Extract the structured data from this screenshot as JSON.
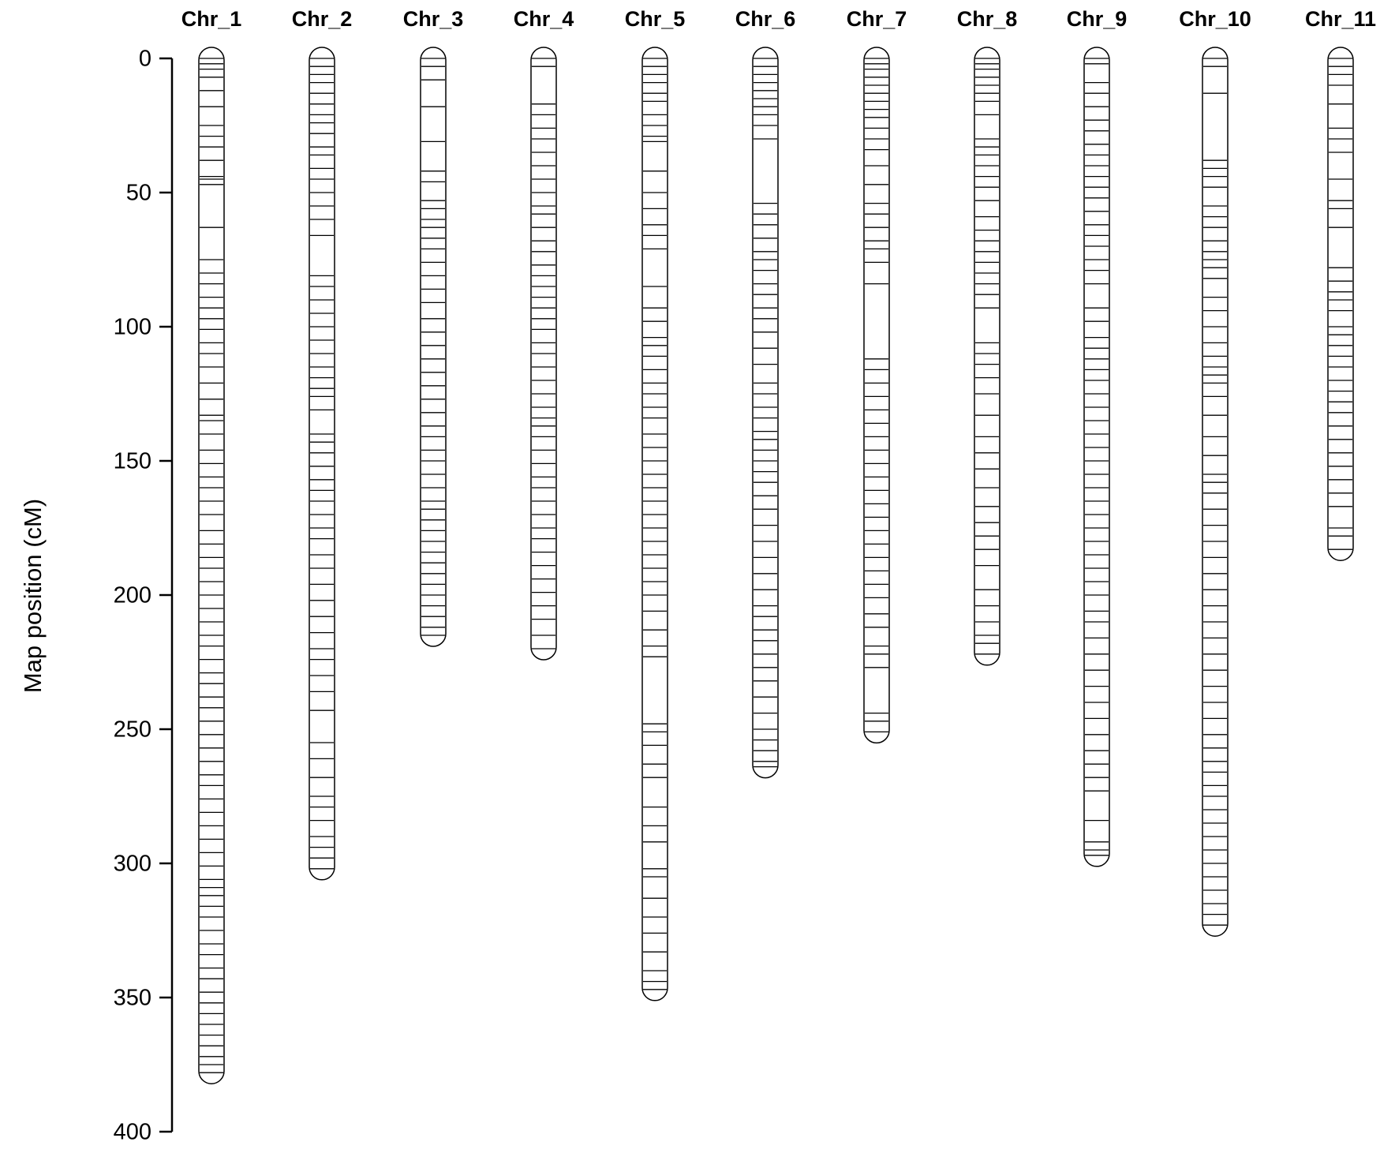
{
  "chart_data": {
    "type": "linkage-map",
    "ylabel": "Map position (cM)",
    "ylim": [
      0,
      400
    ],
    "yticks": [
      0,
      50,
      100,
      150,
      200,
      250,
      300,
      350,
      400
    ],
    "inverted": true,
    "color": "#000000",
    "series": [
      {
        "name": "Chr_1",
        "markers": [
          0,
          2,
          4,
          7,
          12,
          18,
          25,
          29,
          33,
          38,
          44,
          45,
          47,
          63,
          75,
          80,
          84,
          89,
          93,
          97,
          101,
          106,
          110,
          115,
          121,
          127,
          133,
          135,
          140,
          146,
          151,
          156,
          160,
          165,
          170,
          176,
          181,
          186,
          190,
          195,
          200,
          205,
          210,
          215,
          219,
          224,
          229,
          233,
          238,
          242,
          247,
          252,
          257,
          262,
          267,
          271,
          276,
          281,
          286,
          291,
          296,
          301,
          306,
          309,
          312,
          316,
          320,
          325,
          330,
          334,
          339,
          343,
          348,
          352,
          356,
          360,
          364,
          368,
          372,
          375,
          378
        ]
      },
      {
        "name": "Chr_2",
        "markers": [
          0,
          3,
          6,
          9,
          13,
          17,
          21,
          24,
          28,
          33,
          36,
          41,
          45,
          50,
          55,
          60,
          66,
          81,
          85,
          90,
          95,
          100,
          105,
          110,
          115,
          119,
          123,
          126,
          131,
          140,
          143,
          147,
          152,
          157,
          161,
          165,
          170,
          175,
          179,
          185,
          190,
          196,
          202,
          208,
          214,
          220,
          224,
          230,
          236,
          243,
          255,
          261,
          268,
          275,
          279,
          284,
          290,
          294,
          298,
          302
        ]
      },
      {
        "name": "Chr_3",
        "markers": [
          0,
          3,
          8,
          18,
          31,
          42,
          46,
          53,
          56,
          60,
          63,
          67,
          71,
          76,
          81,
          86,
          91,
          97,
          102,
          107,
          112,
          117,
          122,
          127,
          132,
          137,
          141,
          146,
          150,
          155,
          160,
          165,
          168,
          172,
          176,
          180,
          184,
          188,
          192,
          196,
          200,
          204,
          208,
          212,
          215
        ]
      },
      {
        "name": "Chr_4",
        "markers": [
          0,
          3,
          17,
          21,
          26,
          30,
          35,
          40,
          45,
          50,
          55,
          58,
          63,
          68,
          72,
          77,
          81,
          85,
          89,
          93,
          97,
          101,
          106,
          110,
          115,
          120,
          125,
          130,
          134,
          137,
          141,
          146,
          151,
          156,
          160,
          165,
          170,
          175,
          179,
          184,
          189,
          194,
          199,
          204,
          209,
          215,
          220
        ]
      },
      {
        "name": "Chr_5",
        "markers": [
          0,
          3,
          6,
          9,
          13,
          16,
          21,
          25,
          29,
          31,
          42,
          50,
          56,
          62,
          66,
          71,
          85,
          93,
          98,
          104,
          107,
          111,
          116,
          121,
          125,
          130,
          134,
          140,
          145,
          150,
          155,
          160,
          165,
          170,
          175,
          180,
          185,
          190,
          195,
          200,
          206,
          213,
          219,
          223,
          248,
          251,
          256,
          263,
          268,
          279,
          286,
          292,
          302,
          305,
          313,
          320,
          326,
          333,
          340,
          344,
          347
        ]
      },
      {
        "name": "Chr_6",
        "markers": [
          0,
          3,
          6,
          9,
          12,
          15,
          18,
          21,
          25,
          30,
          54,
          58,
          62,
          67,
          72,
          75,
          79,
          84,
          88,
          93,
          97,
          102,
          108,
          114,
          121,
          125,
          130,
          134,
          139,
          142,
          146,
          150,
          154,
          158,
          163,
          168,
          174,
          180,
          186,
          192,
          198,
          204,
          208,
          213,
          217,
          222,
          227,
          232,
          238,
          244,
          250,
          254,
          258,
          262,
          264
        ]
      },
      {
        "name": "Chr_7",
        "markers": [
          0,
          2,
          4,
          7,
          10,
          13,
          16,
          19,
          22,
          26,
          30,
          34,
          40,
          47,
          54,
          58,
          63,
          68,
          71,
          76,
          84,
          112,
          116,
          121,
          126,
          131,
          136,
          141,
          146,
          151,
          156,
          161,
          166,
          171,
          176,
          181,
          186,
          191,
          196,
          201,
          207,
          212,
          219,
          222,
          227,
          244,
          247,
          251
        ]
      },
      {
        "name": "Chr_8",
        "markers": [
          0,
          2,
          4,
          7,
          10,
          13,
          16,
          21,
          30,
          33,
          36,
          40,
          44,
          48,
          53,
          59,
          64,
          68,
          72,
          76,
          80,
          84,
          88,
          93,
          106,
          110,
          114,
          119,
          125,
          133,
          141,
          147,
          153,
          160,
          167,
          173,
          178,
          183,
          189,
          198,
          204,
          210,
          215,
          218,
          222
        ]
      },
      {
        "name": "Chr_9",
        "markers": [
          0,
          2,
          9,
          13,
          18,
          23,
          27,
          32,
          36,
          40,
          44,
          48,
          52,
          57,
          62,
          66,
          70,
          75,
          79,
          84,
          93,
          98,
          104,
          108,
          112,
          116,
          120,
          125,
          130,
          135,
          140,
          145,
          150,
          155,
          160,
          165,
          170,
          175,
          180,
          185,
          190,
          195,
          200,
          206,
          210,
          216,
          222,
          228,
          234,
          240,
          246,
          252,
          258,
          263,
          268,
          273,
          284,
          292,
          295,
          297
        ]
      },
      {
        "name": "Chr_10",
        "markers": [
          0,
          3,
          13,
          38,
          41,
          44,
          48,
          55,
          59,
          63,
          68,
          72,
          75,
          78,
          82,
          89,
          94,
          100,
          106,
          111,
          115,
          118,
          121,
          126,
          133,
          141,
          148,
          155,
          158,
          162,
          168,
          174,
          180,
          186,
          192,
          198,
          204,
          210,
          216,
          222,
          228,
          234,
          240,
          246,
          252,
          257,
          262,
          266,
          271,
          275,
          280,
          285,
          290,
          295,
          300,
          305,
          310,
          315,
          319,
          323
        ]
      },
      {
        "name": "Chr_11",
        "markers": [
          0,
          3,
          6,
          10,
          17,
          26,
          30,
          35,
          45,
          53,
          56,
          63,
          78,
          83,
          87,
          90,
          94,
          100,
          103,
          107,
          111,
          115,
          120,
          124,
          128,
          132,
          137,
          142,
          147,
          152,
          157,
          162,
          167,
          175,
          178,
          183
        ]
      }
    ]
  }
}
